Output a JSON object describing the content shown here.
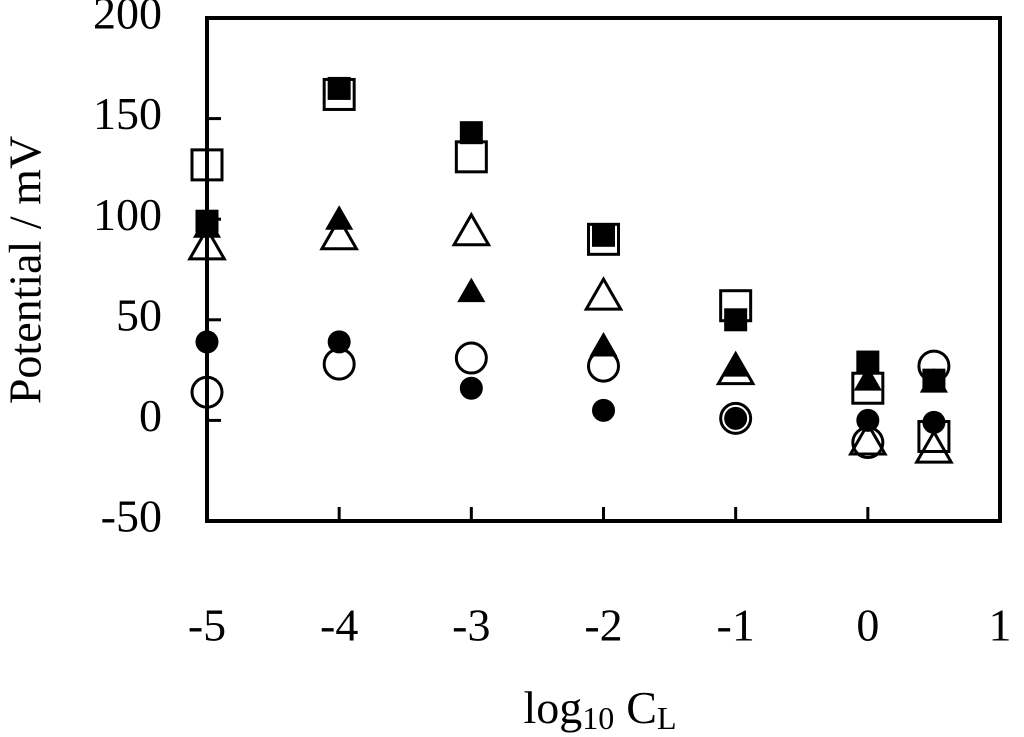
{
  "chart_data": {
    "type": "scatter",
    "ylabel": "Potential / mV",
    "xlabel": {
      "text": "log",
      "subscript": "10",
      "text2": "C",
      "subscript2": "L"
    },
    "xlim": [
      -5,
      1
    ],
    "xticks": [
      -5,
      -4,
      -3,
      -2,
      -1,
      0,
      1
    ],
    "ylim": [
      -50,
      200
    ],
    "yticks": [
      -50,
      0,
      50,
      100,
      150,
      200
    ],
    "grid": false,
    "series": [
      {
        "marker": "square",
        "filled": false,
        "color": "#000000",
        "x": [
          -5,
          -4,
          -3,
          -2,
          -1,
          0,
          0.5
        ],
        "values": [
          127,
          162,
          131,
          90,
          57,
          16,
          -8
        ]
      },
      {
        "marker": "square",
        "filled": true,
        "color": "#000000",
        "x": [
          -5,
          -4,
          -3,
          -2,
          -1,
          0,
          0.5
        ],
        "values": [
          99,
          165,
          143,
          92,
          50,
          29,
          20
        ]
      },
      {
        "marker": "triangle",
        "filled": false,
        "color": "#000000",
        "x": [
          -5,
          -4,
          -3,
          -2,
          -1,
          0,
          0.5
        ],
        "values": [
          87,
          92,
          94,
          62,
          25,
          -10,
          -14
        ]
      },
      {
        "marker": "triangle",
        "filled": true,
        "color": "#000000",
        "x": [
          -5,
          -4,
          -3,
          -2,
          -1,
          0,
          0.5
        ],
        "values": [
          96,
          100,
          64,
          37,
          27,
          20,
          19
        ]
      },
      {
        "marker": "circle",
        "filled": false,
        "color": "#000000",
        "x": [
          -5,
          -4,
          -3,
          -2,
          -1,
          0,
          0.5
        ],
        "values": [
          14,
          28,
          31,
          27,
          1,
          -11,
          27
        ]
      },
      {
        "marker": "circle",
        "filled": true,
        "color": "#000000",
        "x": [
          -5,
          -4,
          -3,
          -2,
          -1,
          0,
          0.5
        ],
        "values": [
          39,
          39,
          16,
          5,
          1,
          0,
          -1
        ]
      }
    ]
  }
}
